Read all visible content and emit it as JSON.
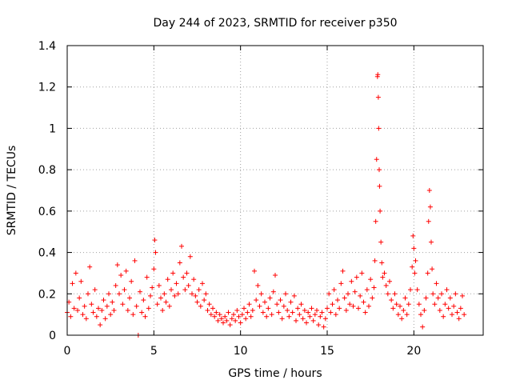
{
  "chart_data": {
    "type": "scatter",
    "title": "Day 244 of 2023, SRMTID for receiver p350",
    "xlabel": "GPS time / hours",
    "ylabel": "SRMTID / TECUs",
    "xlim": [
      0,
      24
    ],
    "ylim": [
      0,
      1.4
    ],
    "xticks": [
      0,
      5,
      10,
      15,
      20
    ],
    "xtick_labels": [
      "0",
      "5",
      "10",
      "15",
      "20"
    ],
    "yticks": [
      0,
      0.2,
      0.4,
      0.6,
      0.8,
      1.0,
      1.2,
      1.4
    ],
    "ytick_labels": [
      "0",
      "0.2",
      "0.4",
      "0.6",
      "0.8",
      "1",
      "1.2",
      "1.4"
    ],
    "grid": true,
    "marker": "+",
    "marker_color": "#ff0000",
    "series": [
      {
        "name": "SRMTID",
        "points": [
          [
            0.0,
            0.11
          ],
          [
            0.1,
            0.16
          ],
          [
            0.2,
            0.09
          ],
          [
            0.3,
            0.25
          ],
          [
            0.4,
            0.13
          ],
          [
            0.5,
            0.3
          ],
          [
            0.6,
            0.12
          ],
          [
            0.7,
            0.18
          ],
          [
            0.8,
            0.26
          ],
          [
            0.9,
            0.1
          ],
          [
            1.0,
            0.14
          ],
          [
            1.1,
            0.08
          ],
          [
            1.2,
            0.2
          ],
          [
            1.3,
            0.33
          ],
          [
            1.4,
            0.15
          ],
          [
            1.5,
            0.11
          ],
          [
            1.6,
            0.22
          ],
          [
            1.7,
            0.09
          ],
          [
            1.8,
            0.13
          ],
          [
            1.9,
            0.05
          ],
          [
            2.0,
            0.12
          ],
          [
            2.1,
            0.17
          ],
          [
            2.2,
            0.08
          ],
          [
            2.3,
            0.14
          ],
          [
            2.4,
            0.2
          ],
          [
            2.5,
            0.1
          ],
          [
            2.6,
            0.16
          ],
          [
            2.7,
            0.12
          ],
          [
            2.8,
            0.24
          ],
          [
            2.9,
            0.34
          ],
          [
            3.0,
            0.2
          ],
          [
            3.1,
            0.29
          ],
          [
            3.2,
            0.15
          ],
          [
            3.3,
            0.22
          ],
          [
            3.4,
            0.31
          ],
          [
            3.5,
            0.12
          ],
          [
            3.6,
            0.18
          ],
          [
            3.7,
            0.26
          ],
          [
            3.8,
            0.1
          ],
          [
            3.9,
            0.36
          ],
          [
            4.0,
            0.14
          ],
          [
            4.1,
            0.0
          ],
          [
            4.2,
            0.21
          ],
          [
            4.3,
            0.11
          ],
          [
            4.4,
            0.17
          ],
          [
            4.5,
            0.09
          ],
          [
            4.6,
            0.28
          ],
          [
            4.7,
            0.13
          ],
          [
            4.8,
            0.19
          ],
          [
            4.9,
            0.23
          ],
          [
            5.0,
            0.32
          ],
          [
            5.05,
            0.46
          ],
          [
            5.1,
            0.4
          ],
          [
            5.2,
            0.15
          ],
          [
            5.3,
            0.24
          ],
          [
            5.4,
            0.18
          ],
          [
            5.5,
            0.12
          ],
          [
            5.6,
            0.2
          ],
          [
            5.7,
            0.16
          ],
          [
            5.8,
            0.27
          ],
          [
            5.9,
            0.14
          ],
          [
            6.0,
            0.22
          ],
          [
            6.1,
            0.3
          ],
          [
            6.2,
            0.19
          ],
          [
            6.3,
            0.25
          ],
          [
            6.4,
            0.2
          ],
          [
            6.5,
            0.35
          ],
          [
            6.6,
            0.43
          ],
          [
            6.7,
            0.28
          ],
          [
            6.8,
            0.22
          ],
          [
            6.9,
            0.3
          ],
          [
            7.0,
            0.24
          ],
          [
            7.1,
            0.38
          ],
          [
            7.2,
            0.2
          ],
          [
            7.3,
            0.27
          ],
          [
            7.4,
            0.19
          ],
          [
            7.5,
            0.16
          ],
          [
            7.6,
            0.22
          ],
          [
            7.7,
            0.14
          ],
          [
            7.8,
            0.25
          ],
          [
            7.9,
            0.17
          ],
          [
            8.0,
            0.2
          ],
          [
            8.1,
            0.12
          ],
          [
            8.2,
            0.15
          ],
          [
            8.3,
            0.1
          ],
          [
            8.4,
            0.13
          ],
          [
            8.5,
            0.09
          ],
          [
            8.6,
            0.11
          ],
          [
            8.7,
            0.07
          ],
          [
            8.8,
            0.1
          ],
          [
            8.9,
            0.08
          ],
          [
            9.0,
            0.06
          ],
          [
            9.1,
            0.09
          ],
          [
            9.2,
            0.07
          ],
          [
            9.3,
            0.11
          ],
          [
            9.4,
            0.05
          ],
          [
            9.5,
            0.08
          ],
          [
            9.6,
            0.1
          ],
          [
            9.7,
            0.07
          ],
          [
            9.8,
            0.12
          ],
          [
            9.9,
            0.09
          ],
          [
            10.0,
            0.06
          ],
          [
            10.1,
            0.1
          ],
          [
            10.2,
            0.13
          ],
          [
            10.3,
            0.08
          ],
          [
            10.4,
            0.11
          ],
          [
            10.5,
            0.15
          ],
          [
            10.6,
            0.09
          ],
          [
            10.7,
            0.12
          ],
          [
            10.8,
            0.31
          ],
          [
            10.9,
            0.17
          ],
          [
            11.0,
            0.24
          ],
          [
            11.1,
            0.14
          ],
          [
            11.2,
            0.2
          ],
          [
            11.3,
            0.11
          ],
          [
            11.4,
            0.16
          ],
          [
            11.5,
            0.09
          ],
          [
            11.6,
            0.13
          ],
          [
            11.7,
            0.18
          ],
          [
            11.8,
            0.1
          ],
          [
            11.9,
            0.21
          ],
          [
            12.0,
            0.29
          ],
          [
            12.1,
            0.15
          ],
          [
            12.2,
            0.11
          ],
          [
            12.3,
            0.17
          ],
          [
            12.4,
            0.08
          ],
          [
            12.5,
            0.14
          ],
          [
            12.6,
            0.2
          ],
          [
            12.7,
            0.12
          ],
          [
            12.8,
            0.09
          ],
          [
            12.9,
            0.16
          ],
          [
            13.0,
            0.11
          ],
          [
            13.1,
            0.19
          ],
          [
            13.2,
            0.07
          ],
          [
            13.3,
            0.13
          ],
          [
            13.4,
            0.1
          ],
          [
            13.5,
            0.15
          ],
          [
            13.6,
            0.08
          ],
          [
            13.7,
            0.12
          ],
          [
            13.8,
            0.06
          ],
          [
            13.9,
            0.11
          ],
          [
            14.0,
            0.09
          ],
          [
            14.1,
            0.13
          ],
          [
            14.2,
            0.07
          ],
          [
            14.3,
            0.1
          ],
          [
            14.4,
            0.12
          ],
          [
            14.5,
            0.05
          ],
          [
            14.6,
            0.09
          ],
          [
            14.7,
            0.11
          ],
          [
            14.8,
            0.04
          ],
          [
            14.9,
            0.08
          ],
          [
            15.0,
            0.13
          ],
          [
            15.1,
            0.2
          ],
          [
            15.2,
            0.11
          ],
          [
            15.3,
            0.15
          ],
          [
            15.4,
            0.22
          ],
          [
            15.5,
            0.1
          ],
          [
            15.6,
            0.17
          ],
          [
            15.7,
            0.13
          ],
          [
            15.8,
            0.25
          ],
          [
            15.9,
            0.31
          ],
          [
            16.0,
            0.18
          ],
          [
            16.1,
            0.12
          ],
          [
            16.2,
            0.2
          ],
          [
            16.3,
            0.15
          ],
          [
            16.4,
            0.26
          ],
          [
            16.5,
            0.14
          ],
          [
            16.6,
            0.21
          ],
          [
            16.7,
            0.28
          ],
          [
            16.8,
            0.13
          ],
          [
            16.9,
            0.19
          ],
          [
            17.0,
            0.3
          ],
          [
            17.1,
            0.16
          ],
          [
            17.2,
            0.11
          ],
          [
            17.3,
            0.22
          ],
          [
            17.4,
            0.14
          ],
          [
            17.5,
            0.27
          ],
          [
            17.6,
            0.18
          ],
          [
            17.7,
            0.23
          ],
          [
            17.75,
            0.36
          ],
          [
            17.8,
            0.55
          ],
          [
            17.85,
            0.85
          ],
          [
            17.9,
            1.25
          ],
          [
            17.92,
            1.26
          ],
          [
            17.95,
            1.15
          ],
          [
            17.97,
            1.0
          ],
          [
            18.0,
            0.8
          ],
          [
            18.02,
            0.72
          ],
          [
            18.05,
            0.6
          ],
          [
            18.1,
            0.45
          ],
          [
            18.15,
            0.35
          ],
          [
            18.2,
            0.28
          ],
          [
            18.3,
            0.3
          ],
          [
            18.4,
            0.24
          ],
          [
            18.5,
            0.2
          ],
          [
            18.6,
            0.26
          ],
          [
            18.7,
            0.17
          ],
          [
            18.8,
            0.13
          ],
          [
            18.9,
            0.2
          ],
          [
            19.0,
            0.15
          ],
          [
            19.1,
            0.1
          ],
          [
            19.2,
            0.14
          ],
          [
            19.3,
            0.08
          ],
          [
            19.4,
            0.12
          ],
          [
            19.5,
            0.18
          ],
          [
            19.6,
            0.1
          ],
          [
            19.7,
            0.15
          ],
          [
            19.8,
            0.22
          ],
          [
            19.9,
            0.33
          ],
          [
            19.95,
            0.48
          ],
          [
            20.0,
            0.42
          ],
          [
            20.05,
            0.3
          ],
          [
            20.1,
            0.36
          ],
          [
            20.2,
            0.22
          ],
          [
            20.3,
            0.15
          ],
          [
            20.4,
            0.1
          ],
          [
            20.5,
            0.04
          ],
          [
            20.6,
            0.12
          ],
          [
            20.7,
            0.18
          ],
          [
            20.8,
            0.3
          ],
          [
            20.85,
            0.55
          ],
          [
            20.9,
            0.7
          ],
          [
            20.95,
            0.62
          ],
          [
            21.0,
            0.45
          ],
          [
            21.05,
            0.32
          ],
          [
            21.1,
            0.2
          ],
          [
            21.2,
            0.15
          ],
          [
            21.3,
            0.25
          ],
          [
            21.4,
            0.18
          ],
          [
            21.5,
            0.12
          ],
          [
            21.6,
            0.2
          ],
          [
            21.7,
            0.09
          ],
          [
            21.8,
            0.15
          ],
          [
            21.9,
            0.22
          ],
          [
            22.0,
            0.13
          ],
          [
            22.1,
            0.18
          ],
          [
            22.2,
            0.1
          ],
          [
            22.3,
            0.14
          ],
          [
            22.4,
            0.2
          ],
          [
            22.5,
            0.11
          ],
          [
            22.6,
            0.08
          ],
          [
            22.7,
            0.13
          ],
          [
            22.8,
            0.19
          ],
          [
            22.9,
            0.1
          ]
        ]
      }
    ]
  }
}
